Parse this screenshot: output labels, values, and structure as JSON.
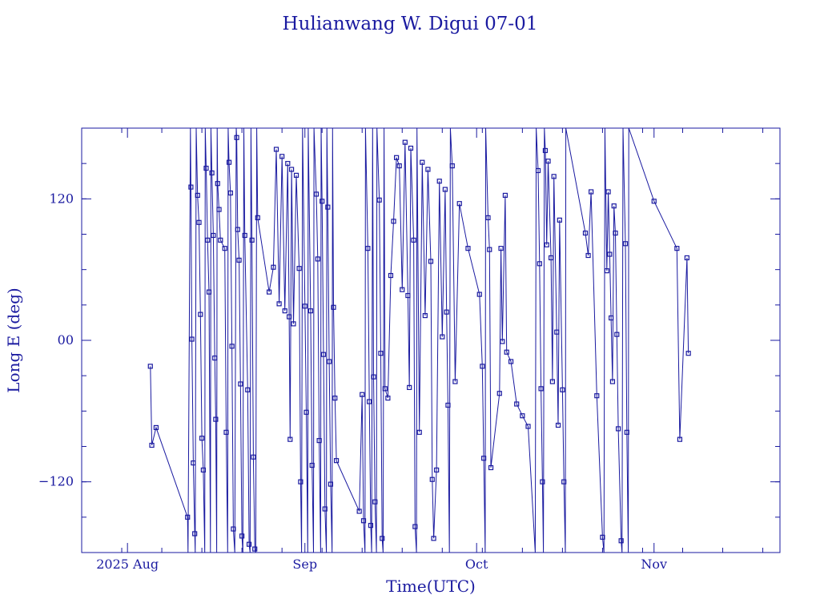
{
  "chart_data": {
    "type": "line",
    "title": "Hulianwang W. Digui 07-01",
    "xlabel": "Time(UTC)",
    "ylabel": "Long E (deg)",
    "x_is_date": true,
    "xlim": [
      "2025-07-24",
      "2025-11-23"
    ],
    "ylim": [
      -180,
      180
    ],
    "grid": false,
    "legend": "none",
    "line_color": "#1a1aa0",
    "x_ticks": [
      {
        "date": "2025-08-01",
        "label": "2025 Aug"
      },
      {
        "date": "2025-09-01",
        "label": "Sep"
      },
      {
        "date": "2025-10-01",
        "label": "Oct"
      },
      {
        "date": "2025-11-01",
        "label": "Nov"
      }
    ],
    "y_ticks": [
      {
        "value": 120,
        "label": "120"
      },
      {
        "value": 0,
        "label": "00"
      },
      {
        "value": -120,
        "label": "-120"
      }
    ],
    "series": [
      {
        "points": [
          [
            "2025-08-05 00:00",
            -22
          ],
          [
            "2025-08-05 06:00",
            -89
          ],
          [
            "2025-08-06 00:00",
            -74
          ],
          [
            "2025-08-11 12:00",
            -150
          ],
          [
            "2025-08-11 14:00",
            -180
          ],
          [
            "2025-08-12 00:00",
            180
          ],
          [
            "2025-08-12 02:00",
            130
          ],
          [
            "2025-08-12 06:00",
            1
          ],
          [
            "2025-08-12 12:00",
            -104
          ],
          [
            "2025-08-12 18:00",
            -164
          ],
          [
            "2025-08-12 20:00",
            -180
          ],
          [
            "2025-08-13 00:00",
            180
          ],
          [
            "2025-08-13 06:00",
            123
          ],
          [
            "2025-08-13 12:00",
            100
          ],
          [
            "2025-08-13 18:00",
            22
          ],
          [
            "2025-08-14 00:00",
            -83
          ],
          [
            "2025-08-14 06:00",
            -110
          ],
          [
            "2025-08-14 12:00",
            -180
          ],
          [
            "2025-08-14 14:00",
            180
          ],
          [
            "2025-08-14 18:00",
            146
          ],
          [
            "2025-08-15 00:00",
            85
          ],
          [
            "2025-08-15 06:00",
            41
          ],
          [
            "2025-08-15 12:00",
            -180
          ],
          [
            "2025-08-15 14:00",
            180
          ],
          [
            "2025-08-15 18:00",
            142
          ],
          [
            "2025-08-16 00:00",
            89
          ],
          [
            "2025-08-16 06:00",
            -15
          ],
          [
            "2025-08-16 10:00",
            -67
          ],
          [
            "2025-08-16 14:00",
            -180
          ],
          [
            "2025-08-16 16:00",
            180
          ],
          [
            "2025-08-16 18:00",
            133
          ],
          [
            "2025-08-17 00:00",
            111
          ],
          [
            "2025-08-17 06:00",
            85
          ],
          [
            "2025-08-18 00:00",
            78
          ],
          [
            "2025-08-18 06:00",
            -78
          ],
          [
            "2025-08-18 12:00",
            -180
          ],
          [
            "2025-08-18 14:00",
            180
          ],
          [
            "2025-08-18 18:00",
            151
          ],
          [
            "2025-08-19 00:00",
            125
          ],
          [
            "2025-08-19 06:00",
            -5
          ],
          [
            "2025-08-19 12:00",
            -160
          ],
          [
            "2025-08-19 18:00",
            -180
          ],
          [
            "2025-08-20 00:00",
            180
          ],
          [
            "2025-08-20 02:00",
            172
          ],
          [
            "2025-08-20 06:00",
            94
          ],
          [
            "2025-08-20 12:00",
            68
          ],
          [
            "2025-08-20 18:00",
            -37
          ],
          [
            "2025-08-21 00:00",
            -166
          ],
          [
            "2025-08-21 04:00",
            -180
          ],
          [
            "2025-08-21 08:00",
            180
          ],
          [
            "2025-08-21 12:00",
            89
          ],
          [
            "2025-08-22 00:00",
            -42
          ],
          [
            "2025-08-22 06:00",
            -173
          ],
          [
            "2025-08-22 10:00",
            -180
          ],
          [
            "2025-08-22 14:00",
            180
          ],
          [
            "2025-08-22 18:00",
            85
          ],
          [
            "2025-08-23 00:00",
            -99
          ],
          [
            "2025-08-23 06:00",
            -177
          ],
          [
            "2025-08-23 10:00",
            -180
          ],
          [
            "2025-08-23 14:00",
            180
          ],
          [
            "2025-08-23 18:00",
            104
          ],
          [
            "2025-08-25 18:00",
            41
          ],
          [
            "2025-08-26 12:00",
            62
          ],
          [
            "2025-08-27 00:00",
            162
          ],
          [
            "2025-08-27 12:00",
            31
          ],
          [
            "2025-08-28 00:00",
            156
          ],
          [
            "2025-08-28 12:00",
            25
          ],
          [
            "2025-08-29 00:00",
            150
          ],
          [
            "2025-08-29 06:00",
            20
          ],
          [
            "2025-08-29 10:00",
            -84
          ],
          [
            "2025-08-29 16:00",
            145
          ],
          [
            "2025-08-30 00:00",
            14
          ],
          [
            "2025-08-30 12:00",
            140
          ],
          [
            "2025-08-31 00:00",
            61
          ],
          [
            "2025-08-31 06:00",
            -120
          ],
          [
            "2025-08-31 10:00",
            -180
          ],
          [
            "2025-08-31 14:00",
            180
          ],
          [
            "2025-09-01 00:00",
            29
          ],
          [
            "2025-09-01 06:00",
            -61
          ],
          [
            "2025-09-01 12:00",
            -180
          ],
          [
            "2025-09-01 14:00",
            180
          ],
          [
            "2025-09-02 00:00",
            25
          ],
          [
            "2025-09-02 06:00",
            -106
          ],
          [
            "2025-09-02 12:00",
            -180
          ],
          [
            "2025-09-02 14:00",
            180
          ],
          [
            "2025-09-03 00:00",
            124
          ],
          [
            "2025-09-03 06:00",
            69
          ],
          [
            "2025-09-03 12:00",
            -85
          ],
          [
            "2025-09-03 18:00",
            -180
          ],
          [
            "2025-09-03 20:00",
            180
          ],
          [
            "2025-09-04 00:00",
            118
          ],
          [
            "2025-09-04 06:00",
            -12
          ],
          [
            "2025-09-04 12:00",
            -143
          ],
          [
            "2025-09-04 18:00",
            -180
          ],
          [
            "2025-09-04 20:00",
            180
          ],
          [
            "2025-09-05 00:00",
            113
          ],
          [
            "2025-09-05 06:00",
            -18
          ],
          [
            "2025-09-05 12:00",
            -122
          ],
          [
            "2025-09-05 18:00",
            -180
          ],
          [
            "2025-09-05 20:00",
            180
          ],
          [
            "2025-09-06 00:00",
            28
          ],
          [
            "2025-09-06 06:00",
            -49
          ],
          [
            "2025-09-06 12:00",
            -102
          ],
          [
            "2025-09-10 12:00",
            -145
          ],
          [
            "2025-09-11 00:00",
            -46
          ],
          [
            "2025-09-11 06:00",
            -153
          ],
          [
            "2025-09-11 12:00",
            -180
          ],
          [
            "2025-09-11 14:00",
            180
          ],
          [
            "2025-09-12 00:00",
            78
          ],
          [
            "2025-09-12 06:00",
            -52
          ],
          [
            "2025-09-12 12:00",
            -157
          ],
          [
            "2025-09-12 16:00",
            -180
          ],
          [
            "2025-09-12 20:00",
            180
          ],
          [
            "2025-09-13 00:00",
            -31
          ],
          [
            "2025-09-13 06:00",
            -137
          ],
          [
            "2025-09-13 12:00",
            -180
          ],
          [
            "2025-09-13 14:00",
            180
          ],
          [
            "2025-09-14 00:00",
            119
          ],
          [
            "2025-09-14 06:00",
            -11
          ],
          [
            "2025-09-14 12:00",
            -168
          ],
          [
            "2025-09-14 16:00",
            -180
          ],
          [
            "2025-09-14 20:00",
            180
          ],
          [
            "2025-09-15 00:00",
            -41
          ],
          [
            "2025-09-15 12:00",
            -49
          ],
          [
            "2025-09-16 00:00",
            55
          ],
          [
            "2025-09-16 12:00",
            101
          ],
          [
            "2025-09-17 00:00",
            155
          ],
          [
            "2025-09-17 12:00",
            148
          ],
          [
            "2025-09-18 00:00",
            43
          ],
          [
            "2025-09-18 12:00",
            168
          ],
          [
            "2025-09-19 00:00",
            38
          ],
          [
            "2025-09-19 06:00",
            -40
          ],
          [
            "2025-09-19 12:00",
            163
          ],
          [
            "2025-09-20 00:00",
            85
          ],
          [
            "2025-09-20 06:00",
            -158
          ],
          [
            "2025-09-20 12:00",
            -180
          ],
          [
            "2025-09-20 14:00",
            180
          ],
          [
            "2025-09-21 00:00",
            -78
          ],
          [
            "2025-09-21 12:00",
            151
          ],
          [
            "2025-09-22 00:00",
            21
          ],
          [
            "2025-09-22 12:00",
            145
          ],
          [
            "2025-09-23 00:00",
            67
          ],
          [
            "2025-09-23 06:00",
            -118
          ],
          [
            "2025-09-23 12:00",
            -168
          ],
          [
            "2025-09-24 00:00",
            -110
          ],
          [
            "2025-09-24 12:00",
            135
          ],
          [
            "2025-09-25 00:00",
            3
          ],
          [
            "2025-09-25 12:00",
            128
          ],
          [
            "2025-09-25 18:00",
            24
          ],
          [
            "2025-09-26 00:00",
            -55
          ],
          [
            "2025-09-26 06:00",
            -180
          ],
          [
            "2025-09-26 10:00",
            180
          ],
          [
            "2025-09-26 18:00",
            148
          ],
          [
            "2025-09-27 06:00",
            -35
          ],
          [
            "2025-09-28 00:00",
            116
          ],
          [
            "2025-09-29 12:00",
            78
          ],
          [
            "2025-10-01 12:00",
            39
          ],
          [
            "2025-10-02 00:00",
            -22
          ],
          [
            "2025-10-02 06:00",
            -100
          ],
          [
            "2025-10-02 12:00",
            -180
          ],
          [
            "2025-10-02 14:00",
            180
          ],
          [
            "2025-10-03 00:00",
            104
          ],
          [
            "2025-10-03 06:00",
            77
          ],
          [
            "2025-10-03 12:00",
            -108
          ],
          [
            "2025-10-05 00:00",
            -45
          ],
          [
            "2025-10-05 06:00",
            78
          ],
          [
            "2025-10-05 12:00",
            -1
          ],
          [
            "2025-10-06 00:00",
            123
          ],
          [
            "2025-10-06 06:00",
            -10
          ],
          [
            "2025-10-07 00:00",
            -18
          ],
          [
            "2025-10-08 00:00",
            -54
          ],
          [
            "2025-10-09 00:00",
            -64
          ],
          [
            "2025-10-10 00:00",
            -73
          ],
          [
            "2025-10-11 06:00",
            -180
          ],
          [
            "2025-10-11 10:00",
            180
          ],
          [
            "2025-10-11 18:00",
            144
          ],
          [
            "2025-10-12 00:00",
            65
          ],
          [
            "2025-10-12 06:00",
            -41
          ],
          [
            "2025-10-12 12:00",
            -120
          ],
          [
            "2025-10-12 16:00",
            -180
          ],
          [
            "2025-10-12 20:00",
            180
          ],
          [
            "2025-10-13 00:00",
            161
          ],
          [
            "2025-10-13 06:00",
            81
          ],
          [
            "2025-10-13 12:00",
            152
          ],
          [
            "2025-10-14 00:00",
            70
          ],
          [
            "2025-10-14 06:00",
            -35
          ],
          [
            "2025-10-14 12:00",
            139
          ],
          [
            "2025-10-15 00:00",
            7
          ],
          [
            "2025-10-15 06:00",
            -72
          ],
          [
            "2025-10-15 12:00",
            102
          ],
          [
            "2025-10-16 00:00",
            -42
          ],
          [
            "2025-10-16 06:00",
            -120
          ],
          [
            "2025-10-16 12:00",
            -180
          ],
          [
            "2025-10-16 14:00",
            180
          ],
          [
            "2025-10-20 00:00",
            91
          ],
          [
            "2025-10-20 12:00",
            72
          ],
          [
            "2025-10-21 00:00",
            126
          ],
          [
            "2025-10-22 00:00",
            -47
          ],
          [
            "2025-10-23 00:00",
            -167
          ],
          [
            "2025-10-23 06:00",
            -180
          ],
          [
            "2025-10-23 10:00",
            180
          ],
          [
            "2025-10-23 18:00",
            59
          ],
          [
            "2025-10-24 00:00",
            126
          ],
          [
            "2025-10-24 06:00",
            73
          ],
          [
            "2025-10-24 12:00",
            19
          ],
          [
            "2025-10-24 18:00",
            -35
          ],
          [
            "2025-10-25 00:00",
            114
          ],
          [
            "2025-10-25 06:00",
            91
          ],
          [
            "2025-10-25 12:00",
            5
          ],
          [
            "2025-10-25 18:00",
            -75
          ],
          [
            "2025-10-26 06:00",
            -170
          ],
          [
            "2025-10-26 10:00",
            -180
          ],
          [
            "2025-10-26 14:00",
            180
          ],
          [
            "2025-10-27 00:00",
            82
          ],
          [
            "2025-10-27 06:00",
            -78
          ],
          [
            "2025-10-27 12:00",
            -180
          ],
          [
            "2025-10-27 14:00",
            180
          ],
          [
            "2025-11-01 00:00",
            118
          ],
          [
            "2025-11-05 00:00",
            78
          ],
          [
            "2025-11-05 12:00",
            -84
          ],
          [
            "2025-11-06 18:00",
            70
          ],
          [
            "2025-11-07 00:00",
            -11
          ]
        ]
      }
    ]
  }
}
